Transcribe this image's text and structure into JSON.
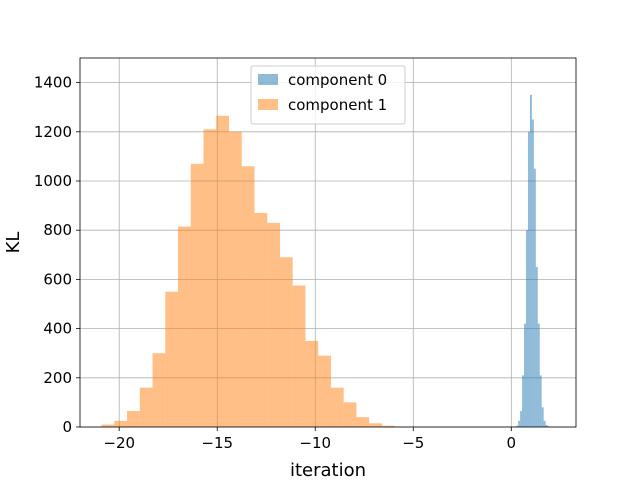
{
  "chart_data": {
    "type": "histogram",
    "title": "",
    "xlabel": "iteration",
    "ylabel": "KL",
    "xlim": [
      -22,
      3.3
    ],
    "ylim": [
      0,
      1500
    ],
    "xticks": [
      -20,
      -15,
      -10,
      -5,
      0
    ],
    "xtick_labels": [
      "−20",
      "−15",
      "−10",
      "−5",
      "0"
    ],
    "yticks": [
      0,
      200,
      400,
      600,
      800,
      1000,
      1200,
      1400
    ],
    "ytick_labels": [
      "0",
      "200",
      "400",
      "600",
      "800",
      "1000",
      "1200",
      "1400"
    ],
    "grid": true,
    "legend": {
      "placement": "upper center"
    },
    "series": [
      {
        "name": "component 0",
        "color": "#1f77b4",
        "alpha": 0.5,
        "bin_edges": [
          0.25,
          0.35,
          0.45,
          0.55,
          0.65,
          0.75,
          0.85,
          0.95,
          1.05,
          1.15,
          1.25,
          1.35,
          1.45,
          1.55,
          1.65,
          1.75,
          1.85,
          1.95,
          2.05
        ],
        "counts": [
          5,
          25,
          65,
          210,
          420,
          800,
          1200,
          1350,
          1250,
          1050,
          650,
          420,
          210,
          80,
          25,
          8,
          3,
          1
        ]
      },
      {
        "name": "component 1",
        "color": "#ff7f0e",
        "alpha": 0.5,
        "bin_edges": [
          -20.9,
          -20.25,
          -19.6,
          -18.95,
          -18.3,
          -17.65,
          -17.0,
          -16.35,
          -15.7,
          -15.05,
          -14.4,
          -13.75,
          -13.1,
          -12.45,
          -11.8,
          -11.15,
          -10.5,
          -9.85,
          -9.2,
          -8.55,
          -7.9,
          -7.25,
          -6.6,
          -5.95
        ],
        "counts": [
          10,
          25,
          65,
          160,
          300,
          550,
          815,
          1070,
          1210,
          1265,
          1200,
          1060,
          870,
          830,
          690,
          575,
          350,
          290,
          160,
          100,
          40,
          15,
          5
        ]
      }
    ]
  }
}
